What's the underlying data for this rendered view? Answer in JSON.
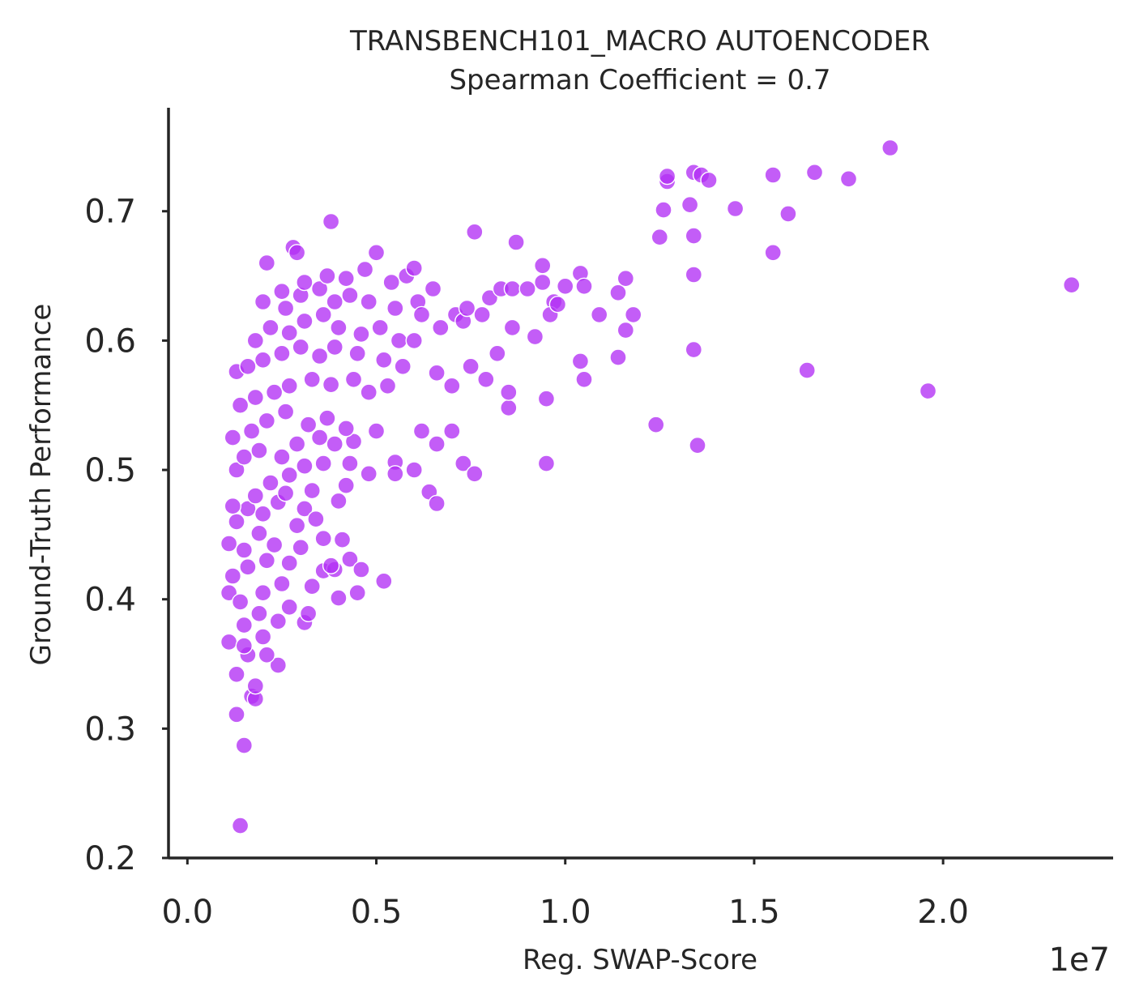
{
  "chart_data": {
    "type": "scatter",
    "title": "TRANSBENCH101_MACRO AUTOENCODER",
    "subtitle": "Spearman Coefficient = 0.7",
    "xlabel": "Reg. SWAP-Score",
    "ylabel": "Ground-Truth Performance",
    "x_offset_label": "1e7",
    "xlim": [
      -0.05,
      2.45
    ],
    "ylim": [
      0.2,
      0.78
    ],
    "x_ticks": [
      0.0,
      0.5,
      1.0,
      1.5,
      2.0
    ],
    "x_tick_labels": [
      "0.0",
      "0.5",
      "1.0",
      "1.5",
      "2.0"
    ],
    "y_ticks": [
      0.2,
      0.3,
      0.4,
      0.5,
      0.6,
      0.7
    ],
    "y_tick_labels": [
      "0.2",
      "0.3",
      "0.4",
      "0.5",
      "0.6",
      "0.7"
    ],
    "grid": false,
    "marker_color": "#b230f5",
    "marker_opacity": 0.78,
    "series": [
      {
        "points": [
          [
            0.14,
            0.225
          ],
          [
            0.15,
            0.287
          ],
          [
            0.13,
            0.311
          ],
          [
            0.17,
            0.325
          ],
          [
            0.18,
            0.323
          ],
          [
            0.18,
            0.333
          ],
          [
            0.13,
            0.342
          ],
          [
            0.24,
            0.349
          ],
          [
            0.16,
            0.357
          ],
          [
            0.21,
            0.357
          ],
          [
            0.11,
            0.367
          ],
          [
            0.15,
            0.364
          ],
          [
            0.2,
            0.371
          ],
          [
            0.24,
            0.383
          ],
          [
            0.31,
            0.382
          ],
          [
            0.15,
            0.38
          ],
          [
            0.19,
            0.389
          ],
          [
            0.27,
            0.394
          ],
          [
            0.32,
            0.389
          ],
          [
            0.4,
            0.401
          ],
          [
            0.11,
            0.405
          ],
          [
            0.14,
            0.398
          ],
          [
            0.2,
            0.405
          ],
          [
            0.25,
            0.412
          ],
          [
            0.33,
            0.41
          ],
          [
            0.36,
            0.422
          ],
          [
            0.39,
            0.423
          ],
          [
            0.45,
            0.405
          ],
          [
            0.43,
            0.431
          ],
          [
            0.46,
            0.423
          ],
          [
            0.52,
            0.414
          ],
          [
            0.12,
            0.418
          ],
          [
            0.16,
            0.425
          ],
          [
            0.21,
            0.43
          ],
          [
            0.27,
            0.428
          ],
          [
            0.3,
            0.44
          ],
          [
            0.36,
            0.447
          ],
          [
            0.41,
            0.446
          ],
          [
            0.38,
            0.426
          ],
          [
            0.11,
            0.443
          ],
          [
            0.15,
            0.438
          ],
          [
            0.19,
            0.451
          ],
          [
            0.23,
            0.442
          ],
          [
            0.29,
            0.457
          ],
          [
            0.31,
            0.47
          ],
          [
            0.34,
            0.462
          ],
          [
            0.4,
            0.476
          ],
          [
            0.13,
            0.46
          ],
          [
            0.16,
            0.47
          ],
          [
            0.2,
            0.466
          ],
          [
            0.24,
            0.475
          ],
          [
            0.26,
            0.482
          ],
          [
            0.33,
            0.484
          ],
          [
            0.42,
            0.488
          ],
          [
            0.12,
            0.472
          ],
          [
            0.18,
            0.48
          ],
          [
            0.22,
            0.49
          ],
          [
            0.27,
            0.496
          ],
          [
            0.31,
            0.503
          ],
          [
            0.36,
            0.505
          ],
          [
            0.43,
            0.505
          ],
          [
            0.48,
            0.497
          ],
          [
            0.55,
            0.506
          ],
          [
            0.13,
            0.5
          ],
          [
            0.15,
            0.51
          ],
          [
            0.19,
            0.515
          ],
          [
            0.25,
            0.51
          ],
          [
            0.29,
            0.52
          ],
          [
            0.35,
            0.525
          ],
          [
            0.39,
            0.52
          ],
          [
            0.44,
            0.522
          ],
          [
            0.12,
            0.525
          ],
          [
            0.17,
            0.53
          ],
          [
            0.21,
            0.538
          ],
          [
            0.26,
            0.545
          ],
          [
            0.32,
            0.535
          ],
          [
            0.37,
            0.54
          ],
          [
            0.42,
            0.532
          ],
          [
            0.5,
            0.53
          ],
          [
            0.14,
            0.55
          ],
          [
            0.18,
            0.556
          ],
          [
            0.23,
            0.56
          ],
          [
            0.27,
            0.565
          ],
          [
            0.33,
            0.57
          ],
          [
            0.38,
            0.566
          ],
          [
            0.44,
            0.57
          ],
          [
            0.48,
            0.56
          ],
          [
            0.53,
            0.565
          ],
          [
            0.13,
            0.576
          ],
          [
            0.16,
            0.58
          ],
          [
            0.2,
            0.585
          ],
          [
            0.25,
            0.59
          ],
          [
            0.3,
            0.595
          ],
          [
            0.35,
            0.588
          ],
          [
            0.39,
            0.595
          ],
          [
            0.45,
            0.59
          ],
          [
            0.52,
            0.585
          ],
          [
            0.57,
            0.58
          ],
          [
            0.18,
            0.6
          ],
          [
            0.22,
            0.61
          ],
          [
            0.27,
            0.606
          ],
          [
            0.31,
            0.615
          ],
          [
            0.36,
            0.62
          ],
          [
            0.4,
            0.61
          ],
          [
            0.46,
            0.605
          ],
          [
            0.51,
            0.61
          ],
          [
            0.56,
            0.6
          ],
          [
            0.6,
            0.6
          ],
          [
            0.2,
            0.63
          ],
          [
            0.26,
            0.625
          ],
          [
            0.3,
            0.635
          ],
          [
            0.35,
            0.64
          ],
          [
            0.39,
            0.63
          ],
          [
            0.43,
            0.635
          ],
          [
            0.48,
            0.63
          ],
          [
            0.55,
            0.625
          ],
          [
            0.61,
            0.63
          ],
          [
            0.25,
            0.638
          ],
          [
            0.31,
            0.645
          ],
          [
            0.37,
            0.65
          ],
          [
            0.42,
            0.648
          ],
          [
            0.47,
            0.655
          ],
          [
            0.54,
            0.645
          ],
          [
            0.58,
            0.65
          ],
          [
            0.65,
            0.64
          ],
          [
            0.71,
            0.62
          ],
          [
            0.21,
            0.66
          ],
          [
            0.28,
            0.672
          ],
          [
            0.29,
            0.668
          ],
          [
            0.38,
            0.692
          ],
          [
            0.5,
            0.668
          ],
          [
            0.6,
            0.656
          ],
          [
            0.62,
            0.62
          ],
          [
            0.67,
            0.61
          ],
          [
            0.73,
            0.615
          ],
          [
            0.78,
            0.62
          ],
          [
            0.8,
            0.633
          ],
          [
            0.83,
            0.64
          ],
          [
            0.86,
            0.64
          ],
          [
            0.9,
            0.64
          ],
          [
            0.94,
            0.645
          ],
          [
            0.97,
            0.63
          ],
          [
            1.0,
            0.642
          ],
          [
            0.66,
            0.575
          ],
          [
            0.7,
            0.565
          ],
          [
            0.75,
            0.58
          ],
          [
            0.79,
            0.57
          ],
          [
            0.82,
            0.59
          ],
          [
            0.86,
            0.61
          ],
          [
            0.92,
            0.603
          ],
          [
            0.96,
            0.62
          ],
          [
            0.74,
            0.625
          ],
          [
            0.76,
            0.684
          ],
          [
            0.87,
            0.676
          ],
          [
            0.94,
            0.658
          ],
          [
            0.98,
            0.628
          ],
          [
            0.62,
            0.53
          ],
          [
            0.66,
            0.52
          ],
          [
            0.7,
            0.53
          ],
          [
            0.73,
            0.505
          ],
          [
            0.76,
            0.497
          ],
          [
            0.6,
            0.5
          ],
          [
            0.64,
            0.483
          ],
          [
            0.66,
            0.474
          ],
          [
            0.55,
            0.497
          ],
          [
            0.85,
            0.548
          ],
          [
            0.85,
            0.56
          ],
          [
            0.95,
            0.555
          ],
          [
            0.95,
            0.505
          ],
          [
            1.04,
            0.652
          ],
          [
            1.05,
            0.642
          ],
          [
            1.09,
            0.62
          ],
          [
            1.14,
            0.637
          ],
          [
            1.16,
            0.648
          ],
          [
            1.18,
            0.62
          ],
          [
            1.16,
            0.608
          ],
          [
            1.14,
            0.587
          ],
          [
            1.04,
            0.584
          ],
          [
            1.05,
            0.57
          ],
          [
            1.24,
            0.535
          ],
          [
            1.25,
            0.68
          ],
          [
            1.26,
            0.701
          ],
          [
            1.27,
            0.723
          ],
          [
            1.27,
            0.727
          ],
          [
            1.33,
            0.705
          ],
          [
            1.34,
            0.681
          ],
          [
            1.34,
            0.651
          ],
          [
            1.34,
            0.593
          ],
          [
            1.35,
            0.519
          ],
          [
            1.34,
            0.73
          ],
          [
            1.36,
            0.728
          ],
          [
            1.38,
            0.724
          ],
          [
            1.45,
            0.702
          ],
          [
            1.55,
            0.728
          ],
          [
            1.55,
            0.668
          ],
          [
            1.59,
            0.698
          ],
          [
            1.64,
            0.577
          ],
          [
            1.66,
            0.73
          ],
          [
            1.75,
            0.725
          ],
          [
            1.86,
            0.749
          ],
          [
            1.96,
            0.561
          ],
          [
            2.34,
            0.643
          ]
        ]
      }
    ]
  }
}
